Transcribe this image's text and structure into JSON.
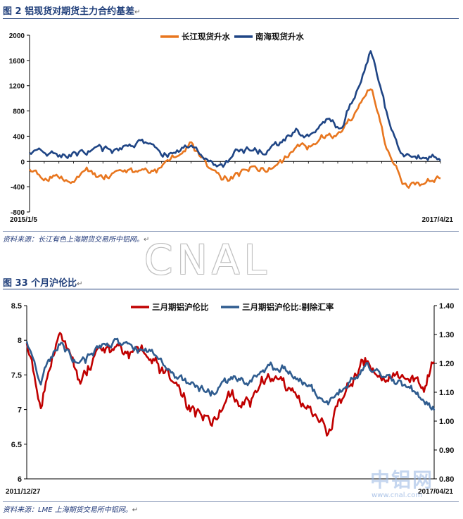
{
  "section1": {
    "title": "图 2 铝现货对期货主力合约基差",
    "source": "资料来源：长江有色上海期货交易所中铝网。"
  },
  "section2": {
    "title": "图 33 个月沪伦比",
    "source": "资料来源：LME 上海期货交易所中铝网。"
  },
  "watermark": {
    "cnal": "CNAL",
    "cn": "中铝网",
    "url": "www.cnal.com"
  },
  "colors": {
    "orange": "#E8761F",
    "navy": "#1F4585",
    "red": "#C00000",
    "blue": "#2F5C8F",
    "rule": "#1F3E7A"
  },
  "chart_data": [
    {
      "type": "line",
      "title": "",
      "xlabel": "",
      "ylabel": "",
      "x_range": [
        "2015/1/5",
        "2017/4/21"
      ],
      "x_tick_labels": [
        "2015/1/5",
        "2017/4/21"
      ],
      "ylim": [
        -800,
        2000
      ],
      "y_ticks": [
        -800,
        -400,
        0,
        400,
        800,
        1200,
        1600,
        2000
      ],
      "legend": "top-center",
      "grid": false,
      "series": [
        {
          "name": "长江现货升水",
          "color": "#E8761F",
          "x": [
            "2015-01-05",
            "2015-02-01",
            "2015-03-01",
            "2015-04-01",
            "2015-05-01",
            "2015-06-01",
            "2015-07-01",
            "2015-08-01",
            "2015-09-01",
            "2015-10-01",
            "2015-11-01",
            "2015-12-01",
            "2016-01-01",
            "2016-02-01",
            "2016-03-01",
            "2016-04-01",
            "2016-05-01",
            "2016-06-01",
            "2016-07-01",
            "2016-08-01",
            "2016-09-01",
            "2016-10-01",
            "2016-11-01",
            "2016-12-01",
            "2017-01-01",
            "2017-02-01",
            "2017-03-01",
            "2017-04-01",
            "2017-04-21"
          ],
          "y": [
            -100,
            -250,
            -200,
            -300,
            -150,
            -250,
            -200,
            -150,
            -150,
            -100,
            50,
            300,
            -100,
            -300,
            -200,
            -100,
            -150,
            -50,
            300,
            200,
            400,
            450,
            800,
            1200,
            200,
            -300,
            -400,
            -300,
            -250
          ]
        },
        {
          "name": "南海现货升水",
          "color": "#1F4585",
          "x": [
            "2015-01-05",
            "2015-02-01",
            "2015-03-01",
            "2015-04-01",
            "2015-05-01",
            "2015-06-01",
            "2015-07-01",
            "2015-08-01",
            "2015-09-01",
            "2015-10-01",
            "2015-11-01",
            "2015-12-01",
            "2016-01-01",
            "2016-02-01",
            "2016-03-01",
            "2016-04-01",
            "2016-05-01",
            "2016-06-01",
            "2016-07-01",
            "2016-08-01",
            "2016-09-01",
            "2016-10-01",
            "2016-11-01",
            "2016-12-01",
            "2017-01-01",
            "2017-02-01",
            "2017-03-01",
            "2017-04-01",
            "2017-04-21"
          ],
          "y": [
            150,
            200,
            50,
            100,
            150,
            200,
            150,
            250,
            300,
            100,
            150,
            300,
            50,
            -100,
            150,
            200,
            150,
            300,
            500,
            400,
            700,
            550,
            1100,
            1800,
            800,
            100,
            50,
            50,
            50
          ]
        }
      ]
    },
    {
      "type": "line",
      "title": "",
      "xlabel": "",
      "ylabel": "",
      "x_range": [
        "2011/12/27",
        "2017/04/21"
      ],
      "x_tick_labels": [
        "2011/12/27",
        "2017/04/21"
      ],
      "ylim": [
        6,
        8.5
      ],
      "y_ticks": [
        6,
        6.5,
        7,
        7.5,
        8,
        8.5
      ],
      "y2lim": [
        0.8,
        1.4
      ],
      "y2_ticks": [
        "0.80",
        "0.90",
        "1.00",
        "1.10",
        "1.20",
        "1.30",
        "1.40"
      ],
      "legend": "top-right",
      "grid": false,
      "series": [
        {
          "name": "三月期铝沪伦比",
          "axis": "left",
          "color": "#C00000",
          "x": [
            "2011-12-27",
            "2012-03-01",
            "2012-06-01",
            "2012-09-01",
            "2012-12-01",
            "2013-03-01",
            "2013-06-01",
            "2013-09-01",
            "2013-12-01",
            "2014-03-01",
            "2014-06-01",
            "2014-09-01",
            "2014-12-01",
            "2015-03-01",
            "2015-06-01",
            "2015-09-01",
            "2015-12-01",
            "2016-03-01",
            "2016-06-01",
            "2016-09-01",
            "2016-12-01",
            "2017-03-01",
            "2017-04-21"
          ],
          "y": [
            8.0,
            7.1,
            8.2,
            7.4,
            7.8,
            7.9,
            7.8,
            7.7,
            7.3,
            7.0,
            6.8,
            7.2,
            7.1,
            7.5,
            7.3,
            7.0,
            6.7,
            7.3,
            7.7,
            7.4,
            7.5,
            7.3,
            7.7
          ]
        },
        {
          "name": "三月期铝沪伦比:剔除汇率",
          "axis": "right",
          "color": "#2F5C8F",
          "x": [
            "2011-12-27",
            "2012-03-01",
            "2012-06-01",
            "2012-09-01",
            "2012-12-01",
            "2013-03-01",
            "2013-06-01",
            "2013-09-01",
            "2013-12-01",
            "2014-03-01",
            "2014-06-01",
            "2014-09-01",
            "2014-12-01",
            "2015-03-01",
            "2015-06-01",
            "2015-09-01",
            "2015-12-01",
            "2016-03-01",
            "2016-06-01",
            "2016-09-01",
            "2016-12-01",
            "2017-03-01",
            "2017-04-21"
          ],
          "y": [
            1.28,
            1.14,
            1.27,
            1.19,
            1.25,
            1.27,
            1.25,
            1.24,
            1.16,
            1.12,
            1.1,
            1.15,
            1.14,
            1.2,
            1.17,
            1.13,
            1.06,
            1.12,
            1.19,
            1.15,
            1.13,
            1.07,
            1.04
          ]
        }
      ]
    }
  ]
}
